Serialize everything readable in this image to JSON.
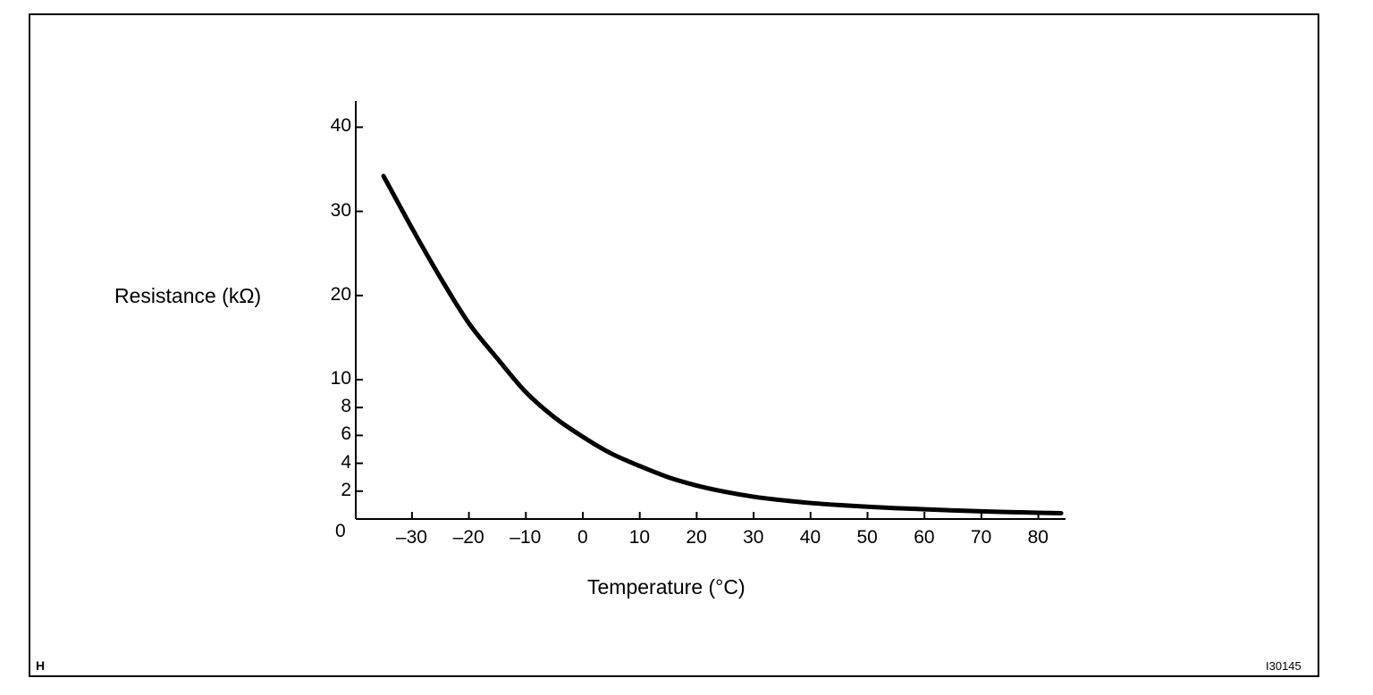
{
  "chart_data": {
    "type": "line",
    "title": "",
    "xlabel": "Temperature (°C)",
    "ylabel": "Resistance (kΩ)",
    "x_ticks": [
      -30,
      -20,
      -10,
      0,
      10,
      20,
      30,
      40,
      50,
      60,
      70,
      80
    ],
    "y_ticks": [
      0,
      2,
      4,
      6,
      8,
      10,
      20,
      30,
      40
    ],
    "y_scale_note": "non-uniform: 0-10 expanded",
    "xlim": [
      -40,
      85
    ],
    "ylim": [
      0,
      43
    ],
    "grid": false,
    "series": [
      {
        "name": "Resistance",
        "x": [
          -35,
          -30,
          -25,
          -20,
          -15,
          -10,
          -5,
          0,
          5,
          10,
          15,
          20,
          25,
          30,
          35,
          40,
          45,
          50,
          55,
          60,
          65,
          70,
          75,
          80,
          84
        ],
        "y": [
          34.2,
          28.0,
          22.1,
          16.7,
          12.5,
          9.1,
          7.3,
          5.9,
          4.7,
          3.8,
          3.0,
          2.4,
          1.95,
          1.6,
          1.35,
          1.15,
          1.0,
          0.88,
          0.78,
          0.7,
          0.62,
          0.55,
          0.5,
          0.45,
          0.42
        ]
      }
    ]
  },
  "footer": {
    "left_mark": "H",
    "figure_id": "I30145"
  }
}
